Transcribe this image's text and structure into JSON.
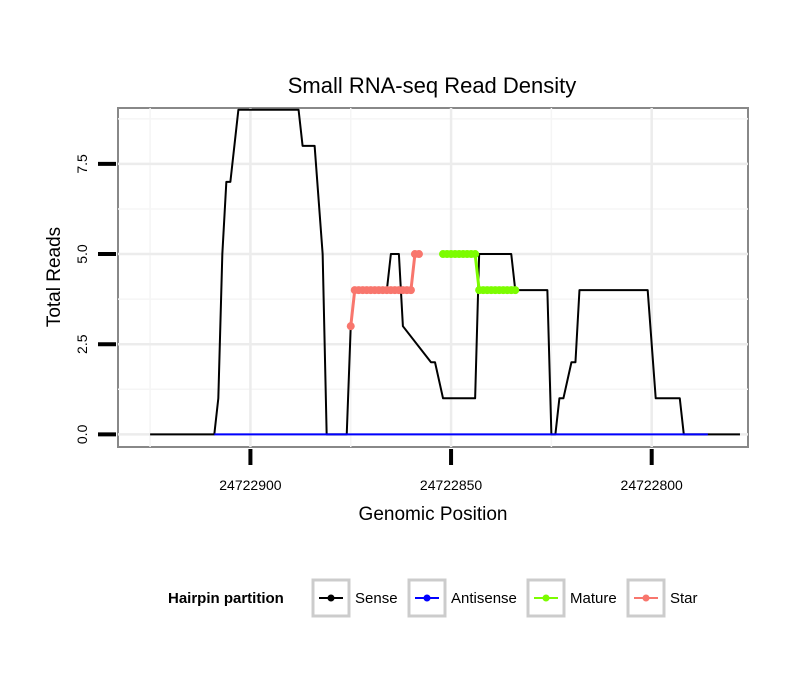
{
  "chart_data": {
    "type": "line",
    "title": "Small RNA-seq Read Density",
    "xlabel": "Genomic Position",
    "ylabel": "Total Reads",
    "x_reversed": true,
    "xlim": [
      24722933,
      24722776
    ],
    "ylim": [
      -0.35,
      9.05
    ],
    "x_ticks": [
      24722900,
      24722850,
      24722800
    ],
    "x_tick_labels": [
      "24722900",
      "24722850",
      "24722800"
    ],
    "y_ticks": [
      0,
      2.5,
      5,
      7.5
    ],
    "y_tick_labels": [
      "0.0",
      "2.5",
      "5.0",
      "7.5"
    ],
    "grid": true,
    "legend": {
      "title": "Hairpin partition",
      "position": "bottom",
      "entries": [
        {
          "name": "Sense",
          "color": "#000000"
        },
        {
          "name": "Antisense",
          "color": "#0000ff"
        },
        {
          "name": "Mature",
          "color": "#7cfc00"
        },
        {
          "name": "Star",
          "color": "#f8766d"
        }
      ]
    },
    "series": [
      {
        "name": "Sense",
        "color": "#000000",
        "x": [
          24722925,
          24722909,
          24722908,
          24722907,
          24722906,
          24722905,
          24722904,
          24722903,
          24722888,
          24722887,
          24722884,
          24722882,
          24722881,
          24722876,
          24722875,
          24722874,
          24722872,
          24722871,
          24722870,
          24722868,
          24722866,
          24722865,
          24722863,
          24722862,
          24722855,
          24722854,
          24722852,
          24722851,
          24722850,
          24722848,
          24722848,
          24722845,
          24722844,
          24722843,
          24722842,
          24722835,
          24722834,
          24722832,
          24722831,
          24722830,
          24722829,
          24722828,
          24722826,
          24722825,
          24722824,
          24722823,
          24722822,
          24722820,
          24722819,
          24722818,
          24722808,
          24722807,
          24722805,
          24722804,
          24722803,
          24722801,
          24722799,
          24722793,
          24722792,
          24722790,
          24722786,
          24722778
        ],
        "y": [
          0,
          0,
          1,
          5,
          7,
          7,
          8,
          9,
          9,
          8,
          8,
          5,
          0,
          0,
          3,
          4,
          4,
          4,
          4,
          4,
          4,
          5,
          5,
          3,
          2,
          2,
          1,
          1,
          1,
          1,
          1,
          1,
          1,
          5,
          5,
          5,
          4,
          4,
          4,
          4,
          4,
          4,
          4,
          0,
          0,
          1,
          1,
          2,
          2,
          4,
          4,
          4,
          4,
          4,
          4,
          4,
          1,
          1,
          0,
          0,
          0,
          0
        ]
      },
      {
        "name": "Antisense",
        "color": "#0000ff",
        "x": [
          24722909,
          24722786
        ],
        "y": [
          0,
          0
        ]
      },
      {
        "name": "Mature",
        "color": "#7cfc00",
        "x": [
          24722852,
          24722851,
          24722850,
          24722849,
          24722848,
          24722847,
          24722846,
          24722845,
          24722844,
          24722843,
          24722842,
          24722841,
          24722840,
          24722839,
          24722838,
          24722837,
          24722836,
          24722835,
          24722834
        ],
        "y": [
          5,
          5,
          5,
          5,
          5,
          5,
          5,
          5,
          5,
          4,
          4,
          4,
          4,
          4,
          4,
          4,
          4,
          4,
          4
        ]
      },
      {
        "name": "Star",
        "color": "#f8766d",
        "x": [
          24722875,
          24722874,
          24722873,
          24722872,
          24722871,
          24722870,
          24722869,
          24722868,
          24722867,
          24722866,
          24722865,
          24722864,
          24722863,
          24722862,
          24722861,
          24722860,
          24722859,
          24722858
        ],
        "y": [
          3,
          4,
          4,
          4,
          4,
          4,
          4,
          4,
          4,
          4,
          4,
          4,
          4,
          4,
          4,
          4,
          5,
          5
        ]
      }
    ]
  }
}
